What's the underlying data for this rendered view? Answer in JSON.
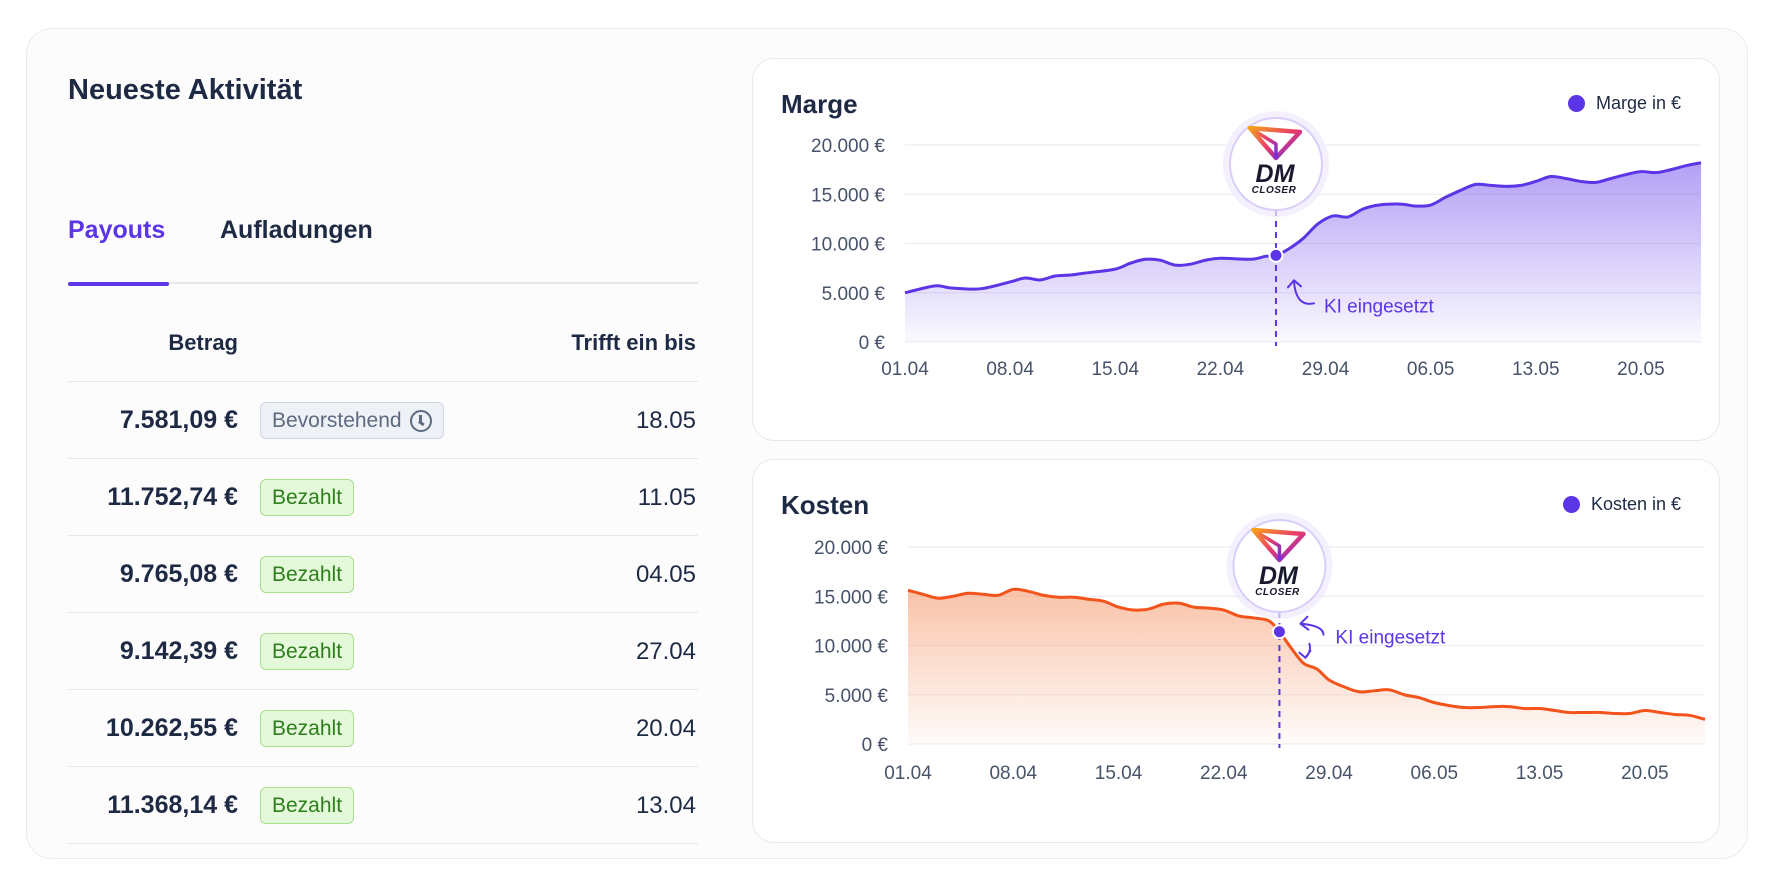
{
  "activity": {
    "title": "Neueste Aktivität",
    "tabs": [
      {
        "label": "Payouts",
        "active": true
      },
      {
        "label": "Aufladungen",
        "active": false
      }
    ],
    "columns": {
      "amount": "Betrag",
      "date": "Trifft ein bis"
    },
    "rows": [
      {
        "amount": "7.581,09 €",
        "status": "Bevorstehend",
        "status_type": "pending",
        "date": "18.05"
      },
      {
        "amount": "11.752,74 €",
        "status": "Bezahlt",
        "status_type": "paid",
        "date": "11.05"
      },
      {
        "amount": "9.765,08 €",
        "status": "Bezahlt",
        "status_type": "paid",
        "date": "04.05"
      },
      {
        "amount": "9.142,39 €",
        "status": "Bezahlt",
        "status_type": "paid",
        "date": "27.04"
      },
      {
        "amount": "10.262,55 €",
        "status": "Bezahlt",
        "status_type": "paid",
        "date": "20.04"
      },
      {
        "amount": "11.368,14 €",
        "status": "Bezahlt",
        "status_type": "paid",
        "date": "13.04"
      }
    ]
  },
  "brand": {
    "logo_text": "DM",
    "logo_subtext": "CLOSER"
  },
  "chart_data": [
    {
      "type": "area",
      "title": "Marge",
      "legend": "Marge in €",
      "legend_position": "top-right",
      "color": "#5b35e6",
      "fill_color": "#8a6cf0",
      "ylim": [
        0,
        20000
      ],
      "yticks": [
        0,
        5000,
        10000,
        15000,
        20000
      ],
      "ytick_labels": [
        "0 €",
        "5.000 €",
        "10.000 €",
        "15.000 €",
        "20.000 €"
      ],
      "xlim": [
        0,
        53
      ],
      "xticks": [
        0,
        7,
        14,
        21,
        28,
        35,
        42,
        49
      ],
      "xtick_labels": [
        "01.04",
        "08.04",
        "15.04",
        "22.04",
        "29.04",
        "06.05",
        "13.05",
        "20.05"
      ],
      "grid": true,
      "x": [
        0,
        2,
        3,
        5,
        7,
        8,
        9,
        10,
        11,
        12,
        14,
        15,
        16,
        17,
        18,
        19,
        20,
        21,
        23,
        24,
        24.7,
        25.5,
        26.5,
        27.5,
        28.5,
        29.5,
        30.5,
        31.5,
        33,
        34,
        35,
        36,
        37,
        38,
        39,
        40,
        41,
        42,
        43,
        44,
        45,
        46,
        47,
        48,
        49,
        50,
        51,
        52,
        53
      ],
      "values": [
        5000,
        5700,
        5500,
        5400,
        6100,
        6500,
        6300,
        6700,
        6800,
        7000,
        7400,
        8000,
        8400,
        8300,
        7800,
        7900,
        8300,
        8500,
        8400,
        8700,
        8800,
        9400,
        10500,
        12000,
        12800,
        12700,
        13500,
        13900,
        14000,
        13800,
        13900,
        14700,
        15400,
        16000,
        15900,
        15800,
        15900,
        16300,
        16800,
        16600,
        16300,
        16200,
        16600,
        17000,
        17300,
        17200,
        17500,
        17900,
        18200
      ],
      "annotation": {
        "x": 24.7,
        "label": "KI eingesetzt"
      }
    },
    {
      "type": "area",
      "title": "Kosten",
      "legend": "Kosten in €",
      "legend_position": "top-right",
      "color": "#f2541b",
      "fill_color": "#f7a27a",
      "ylim": [
        0,
        20000
      ],
      "yticks": [
        0,
        5000,
        10000,
        15000,
        20000
      ],
      "ytick_labels": [
        "0 €",
        "5.000 €",
        "10.000 €",
        "15.000 €",
        "20.000 €"
      ],
      "xlim": [
        0,
        53
      ],
      "xticks": [
        0,
        7,
        14,
        21,
        28,
        35,
        42,
        49
      ],
      "xtick_labels": [
        "01.04",
        "08.04",
        "15.04",
        "22.04",
        "29.04",
        "06.05",
        "13.05",
        "20.05"
      ],
      "grid": true,
      "x": [
        0,
        1,
        2,
        3,
        4,
        5,
        6,
        7,
        8,
        9,
        10,
        11,
        12,
        13,
        14,
        15,
        16,
        17,
        18,
        19,
        20,
        21,
        22,
        23,
        24,
        24.7,
        25.5,
        26.3,
        27.2,
        28,
        29,
        30,
        31,
        32,
        33,
        34,
        35,
        36,
        37,
        38,
        39,
        40,
        41,
        42,
        43,
        44,
        45,
        46,
        47,
        48,
        49,
        50,
        51,
        52,
        53
      ],
      "values": [
        15600,
        15200,
        14800,
        15000,
        15300,
        15200,
        15100,
        15700,
        15500,
        15100,
        14900,
        14900,
        14700,
        14500,
        13900,
        13600,
        13700,
        14200,
        14300,
        13900,
        13800,
        13600,
        13000,
        12800,
        12500,
        11400,
        9700,
        8200,
        7600,
        6500,
        5800,
        5300,
        5400,
        5500,
        5000,
        4700,
        4200,
        3900,
        3700,
        3700,
        3800,
        3800,
        3600,
        3600,
        3400,
        3200,
        3200,
        3200,
        3100,
        3100,
        3400,
        3200,
        3000,
        2900,
        2500
      ],
      "annotation": {
        "x": 24.7,
        "label": "KI eingesetzt"
      }
    }
  ]
}
